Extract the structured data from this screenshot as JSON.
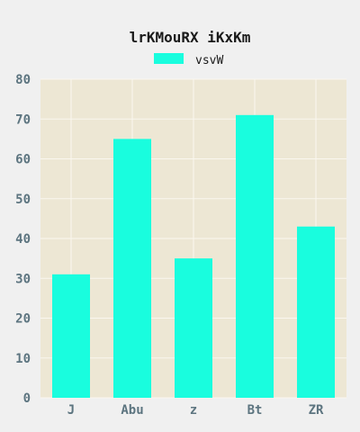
{
  "chart_data": {
    "type": "bar",
    "title": "lrKMouRX iKxKm",
    "xlabel": "",
    "ylabel": "",
    "categories": [
      "J",
      "Abu",
      "z",
      "Bt",
      "ZR"
    ],
    "series": [
      {
        "name": "vsvW",
        "values": [
          31,
          65,
          35,
          71,
          43
        ]
      }
    ],
    "ylim": [
      0,
      80
    ],
    "yticks": [
      0,
      10,
      20,
      30,
      40,
      50,
      60,
      70,
      80
    ],
    "grid": true,
    "legend_position": "top-center",
    "colors": {
      "bar": "#19fdde",
      "plot_background": "#ede7d4",
      "page_background": "#f0f0f0",
      "grid": "#faf7ef",
      "tick_label": "#5d7580",
      "title": "#1a1a1a"
    }
  }
}
